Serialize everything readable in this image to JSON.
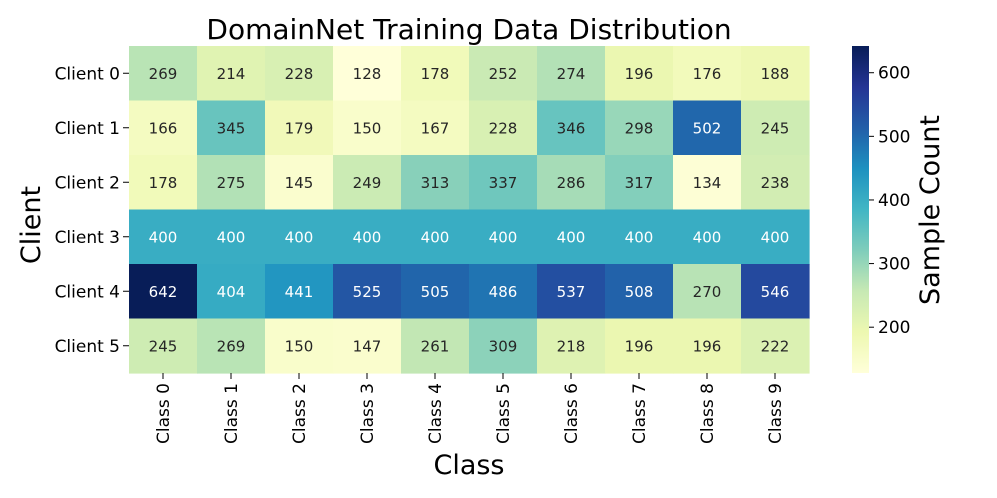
{
  "chart_data": {
    "type": "heatmap",
    "title": "DomainNet Training Data Distribution",
    "xlabel": "Class",
    "ylabel": "Client",
    "x_categories": [
      "Class 0",
      "Class 1",
      "Class 2",
      "Class 3",
      "Class 4",
      "Class 5",
      "Class 6",
      "Class 7",
      "Class 8",
      "Class 9"
    ],
    "y_categories": [
      "Client 0",
      "Client 1",
      "Client 2",
      "Client 3",
      "Client 4",
      "Client 5"
    ],
    "values": [
      [
        269,
        214,
        228,
        128,
        178,
        252,
        274,
        196,
        176,
        188
      ],
      [
        166,
        345,
        179,
        150,
        167,
        228,
        346,
        298,
        502,
        245
      ],
      [
        178,
        275,
        145,
        249,
        313,
        337,
        286,
        317,
        134,
        238
      ],
      [
        400,
        400,
        400,
        400,
        400,
        400,
        400,
        400,
        400,
        400
      ],
      [
        642,
        404,
        441,
        525,
        505,
        486,
        537,
        508,
        270,
        546
      ],
      [
        245,
        269,
        150,
        147,
        261,
        309,
        218,
        196,
        196,
        222
      ]
    ],
    "colorbar": {
      "label": "Sample Count",
      "min": 128,
      "max": 642,
      "ticks": [
        200,
        300,
        400,
        500,
        600
      ],
      "colormap": "YlGnBu"
    },
    "annotations": "values shown in each cell"
  }
}
